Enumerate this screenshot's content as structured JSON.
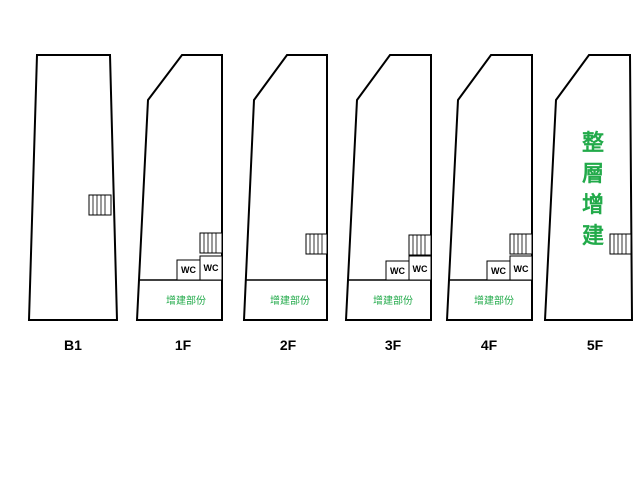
{
  "colors": {
    "outline": "#000000",
    "annotation_green": "#22aa4a"
  },
  "floors": [
    {
      "label": "B1",
      "extension_note": "",
      "wc": [],
      "stair": true,
      "full_extension": []
    },
    {
      "label": "1F",
      "extension_note": "增建部份",
      "wc": [
        "WC",
        "WC"
      ],
      "stair": true,
      "full_extension": []
    },
    {
      "label": "2F",
      "extension_note": "增建部份",
      "wc": [],
      "stair": true,
      "full_extension": []
    },
    {
      "label": "3F",
      "extension_note": "增建部份",
      "wc": [
        "WC",
        "WC"
      ],
      "stair": true,
      "full_extension": []
    },
    {
      "label": "4F",
      "extension_note": "增建部份",
      "wc": [
        "WC",
        "WC"
      ],
      "stair": true,
      "full_extension": []
    },
    {
      "label": "5F",
      "extension_note": "",
      "wc": [],
      "stair": true,
      "full_extension": [
        "整",
        "層",
        "增",
        "建"
      ]
    }
  ]
}
